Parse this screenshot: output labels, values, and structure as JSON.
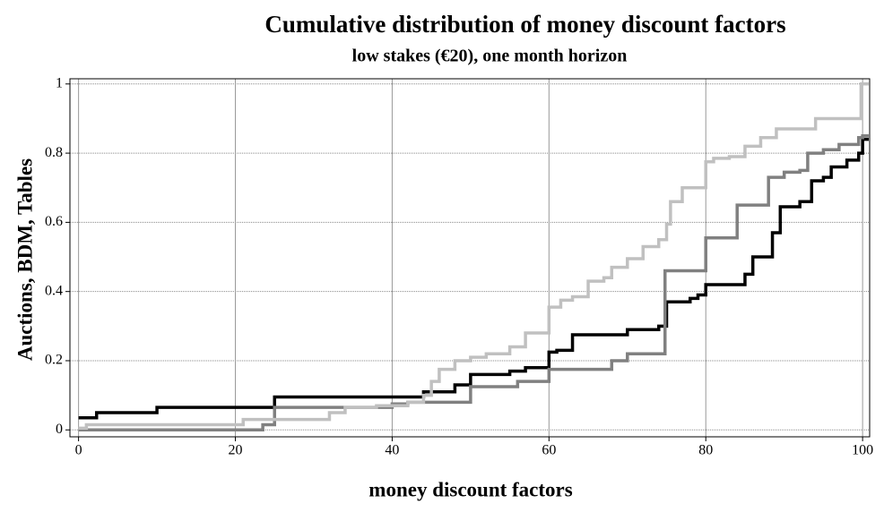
{
  "chart_data": {
    "type": "step",
    "title": "Cumulative distribution of money discount factors",
    "subtitle": "low stakes (€20), one month horizon",
    "x_label": "money discount factors",
    "y_label": "Auctions, BDM, Tables",
    "xlim": [
      -1.1,
      100.9
    ],
    "ylim": [
      -0.02,
      1.015
    ],
    "xticks": [
      0,
      20,
      40,
      60,
      80,
      100
    ],
    "yticks": [
      0,
      0.2,
      0.4,
      0.6,
      0.8,
      1
    ],
    "grid": true,
    "series": [
      {
        "color": "#000000",
        "x": [
          0,
          2.3,
          10,
          25,
          44,
          48,
          50,
          55,
          57,
          60,
          61,
          63,
          70,
          74,
          75,
          78,
          79,
          80,
          85,
          86,
          88.5,
          89.5,
          92,
          93.5,
          95,
          96,
          98,
          99.5,
          100
        ],
        "values": [
          0.035,
          0.05,
          0.065,
          0.095,
          0.11,
          0.13,
          0.16,
          0.17,
          0.18,
          0.225,
          0.23,
          0.275,
          0.29,
          0.3,
          0.37,
          0.38,
          0.39,
          0.42,
          0.45,
          0.5,
          0.57,
          0.645,
          0.66,
          0.72,
          0.73,
          0.76,
          0.78,
          0.8,
          0.84
        ]
      },
      {
        "color": "#808080",
        "x": [
          0,
          23.5,
          25,
          40,
          42,
          50,
          56,
          60,
          68,
          70,
          74.8,
          80,
          84,
          88,
          90,
          92,
          93,
          95,
          97,
          99.5,
          100
        ],
        "values": [
          0,
          0.015,
          0.065,
          0.075,
          0.08,
          0.125,
          0.14,
          0.175,
          0.2,
          0.22,
          0.46,
          0.555,
          0.65,
          0.73,
          0.745,
          0.75,
          0.8,
          0.81,
          0.825,
          0.845,
          0.85
        ]
      },
      {
        "color": "#c0c0c0",
        "x": [
          0,
          1,
          21,
          32,
          34,
          38,
          42,
          44,
          45,
          46,
          48,
          50,
          52,
          55,
          57,
          60,
          61.5,
          63,
          65,
          67,
          68,
          70,
          72,
          74,
          75,
          75.5,
          77,
          80,
          81,
          83,
          85,
          87,
          89,
          94,
          99.8
        ],
        "values": [
          0.005,
          0.015,
          0.03,
          0.05,
          0.065,
          0.07,
          0.08,
          0.1,
          0.14,
          0.175,
          0.2,
          0.21,
          0.22,
          0.24,
          0.28,
          0.355,
          0.375,
          0.385,
          0.43,
          0.44,
          0.47,
          0.495,
          0.53,
          0.55,
          0.595,
          0.66,
          0.7,
          0.775,
          0.785,
          0.79,
          0.82,
          0.845,
          0.87,
          0.9,
          1.0
        ]
      }
    ]
  }
}
